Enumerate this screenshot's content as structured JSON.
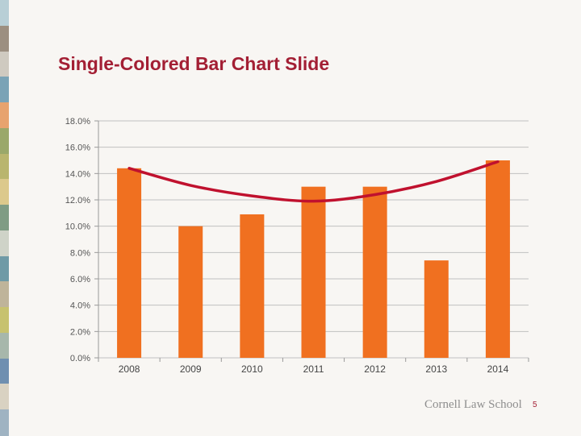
{
  "slide": {
    "title": "Single-Colored Bar Chart Slide",
    "footer_logo": "Cornell Law School",
    "page_number": "5"
  },
  "theme": {
    "bar_color": "#f07020",
    "trend_color": "#c0112e",
    "title_color": "#a31f34",
    "grid_color": "#c0c0c0",
    "stripe_colors": [
      "#b8cfd6",
      "#9c8f80",
      "#cfcac0",
      "#7aa3b6",
      "#e7a36e",
      "#9aa86a",
      "#b9b56e",
      "#dcc98c",
      "#7f9c84",
      "#cfd3c8",
      "#6f9aa6",
      "#bfb49a",
      "#c7c26f",
      "#a7b7ab",
      "#6f8fb0",
      "#d9d2c2",
      "#9fb3c2"
    ]
  },
  "chart_data": {
    "type": "bar",
    "categories": [
      "2008",
      "2009",
      "2010",
      "2011",
      "2012",
      "2013",
      "2014"
    ],
    "values": [
      14.4,
      10.0,
      10.9,
      13.0,
      13.0,
      7.4,
      15.0
    ],
    "yticks": [
      "0.0%",
      "2.0%",
      "4.0%",
      "6.0%",
      "8.0%",
      "10.0%",
      "12.0%",
      "14.0%",
      "16.0%",
      "18.0%"
    ],
    "ylim": [
      0,
      18
    ],
    "trendline": {
      "type": "polynomial",
      "x": [
        "2008",
        "2009",
        "2010",
        "2011",
        "2012",
        "2013",
        "2014"
      ],
      "values": [
        14.4,
        13.1,
        12.3,
        11.9,
        12.4,
        13.4,
        14.9
      ]
    },
    "grid": true,
    "legend": "none"
  }
}
